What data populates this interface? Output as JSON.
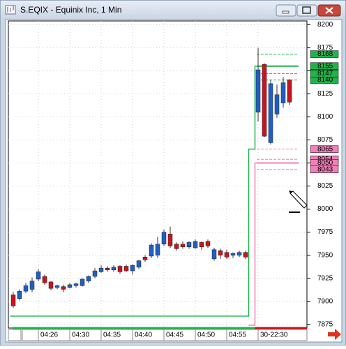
{
  "window": {
    "title": "S.EQIX - Equinix Inc, 1 Min"
  },
  "chart_data": {
    "type": "candlestick",
    "categories": [
      null,
      null,
      null,
      null,
      "04:26",
      null,
      null,
      null,
      null,
      "04:30",
      null,
      null,
      null,
      null,
      "04:35",
      null,
      null,
      null,
      null,
      "04:40",
      null,
      null,
      null,
      null,
      "04:45",
      null,
      null,
      null,
      null,
      "04:50",
      null,
      null,
      null,
      null,
      "04:55",
      null,
      null,
      null,
      null,
      "30-22:30",
      null,
      null,
      null,
      null,
      null
    ],
    "open": [
      7907,
      7903,
      7911,
      7913,
      7924,
      7927,
      7921,
      7915,
      7916,
      7915,
      7917,
      7917,
      7922,
      7927,
      7932,
      7936,
      7934,
      7938,
      7938,
      7933,
      7937,
      7948,
      7949,
      7950,
      7962,
      7973,
      7962,
      7962,
      7959,
      7958,
      7964,
      7965,
      7946,
      7955,
      7953,
      7950,
      7950,
      7953,
      null,
      8105,
      8157,
      8072,
      8103,
      8115,
      8140
    ],
    "high": [
      7910,
      7913,
      7920,
      7926,
      7935,
      7929,
      7922,
      7918,
      7918,
      7920,
      7920,
      7925,
      7928,
      7936,
      7939,
      7938,
      7939,
      7939,
      7940,
      7940,
      7945,
      7950,
      7963,
      7970,
      7978,
      7981,
      7964,
      7965,
      7965,
      7967,
      7965,
      7967,
      7958,
      7957,
      7956,
      7953,
      7955,
      7955,
      null,
      8175,
      8158,
      8140,
      8135,
      8143,
      8141
    ],
    "low": [
      7893,
      7901,
      7909,
      7910,
      7922,
      7918,
      7912,
      7913,
      7910,
      7914,
      7915,
      7916,
      7920,
      7925,
      7931,
      7932,
      7932,
      7930,
      7932,
      7929,
      7935,
      7943,
      7947,
      7947,
      7960,
      7958,
      7955,
      7957,
      7957,
      7957,
      7956,
      7958,
      7944,
      7946,
      7946,
      7947,
      7948,
      7946,
      null,
      8095,
      8078,
      8070,
      8099,
      8110,
      8113
    ],
    "close": [
      7895,
      7911,
      7917,
      7922,
      7932,
      7920,
      7914,
      7917,
      7913,
      7918,
      7919,
      7924,
      7927,
      7933,
      7936,
      7934,
      7937,
      7932,
      7933,
      7939,
      7944,
      7945,
      7961,
      7962,
      7975,
      7960,
      7957,
      7959,
      7964,
      7965,
      7959,
      7960,
      7956,
      7950,
      7948,
      7952,
      7953,
      7948,
      null,
      8151,
      8079,
      8136,
      8124,
      8137,
      8116
    ],
    "up_color": "#1f5fc4",
    "down_color": "#c8141e",
    "lines": [
      {
        "color": "#22b24c",
        "values": [
          7884,
          7884,
          7884,
          7884,
          7884,
          7884,
          7884,
          7884,
          7884,
          7884,
          7884,
          7884,
          7884,
          7884,
          7884,
          7884,
          7884,
          7884,
          7884,
          7884,
          7884,
          7884,
          7884,
          7884,
          7884,
          7884,
          7884,
          7884,
          7884,
          7884,
          7884,
          7884,
          7884,
          7884,
          7884,
          7884,
          7884,
          7884,
          8065,
          8155,
          8155,
          8155,
          8155,
          8155,
          8155
        ]
      },
      {
        "color": "#f080b8",
        "values": [
          null,
          null,
          null,
          null,
          null,
          null,
          null,
          null,
          null,
          null,
          null,
          null,
          null,
          null,
          null,
          null,
          null,
          null,
          null,
          null,
          null,
          null,
          null,
          null,
          null,
          null,
          null,
          null,
          null,
          null,
          null,
          null,
          null,
          null,
          null,
          null,
          null,
          null,
          7874,
          8050,
          8050,
          8050,
          8050,
          8050,
          8050
        ]
      }
    ],
    "levels": [
      {
        "value": 8168,
        "color": "#22b24c",
        "dashed": true
      },
      {
        "value": 8155,
        "color": "#22b24c",
        "dashed": false
      },
      {
        "value": 8140,
        "color": "#22b24c",
        "dashed": true
      },
      {
        "value": 8147,
        "color": "#22b24c",
        "dashed": true
      },
      {
        "value": 8065,
        "color": "#f080b8",
        "dashed": true
      },
      {
        "value": 8054,
        "color": "#f080b8",
        "dashed": true
      },
      {
        "value": 8050,
        "color": "#f080b8",
        "dashed": false
      },
      {
        "value": 8043,
        "color": "#f080b8",
        "dashed": true
      }
    ],
    "ylim": [
      7871,
      8204
    ],
    "yticks": [
      7875,
      7900,
      7925,
      7950,
      7975,
      8000,
      8025,
      8050,
      8075,
      8100,
      8125,
      8150,
      8175,
      8200
    ],
    "grid": true
  }
}
